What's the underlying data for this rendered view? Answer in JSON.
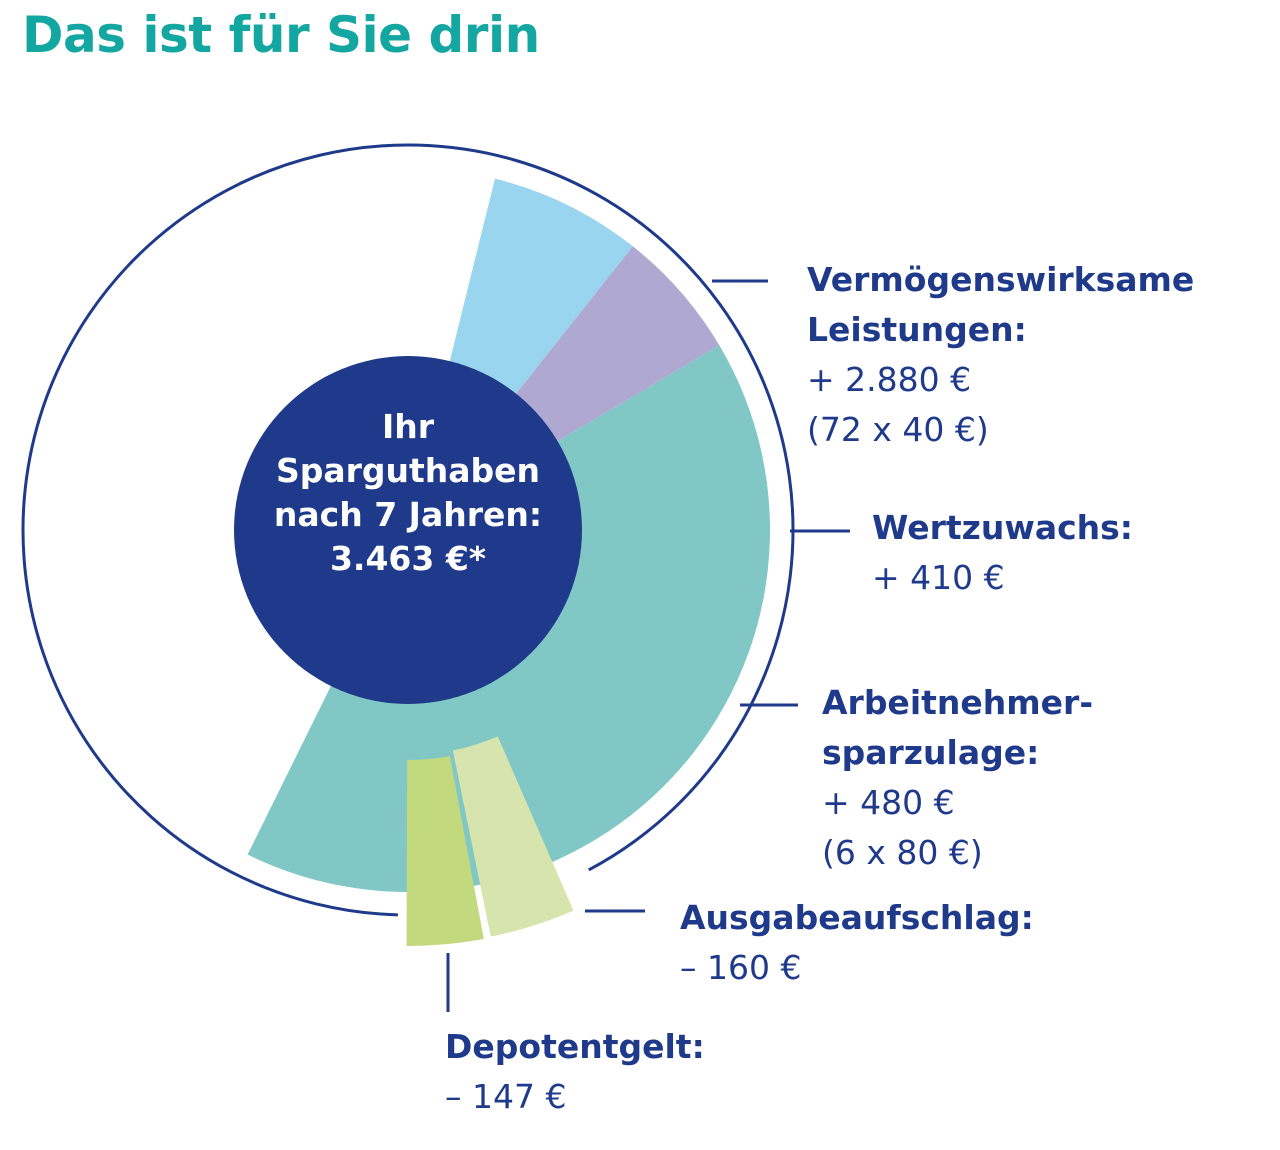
{
  "title": "Das ist für Sie drin",
  "center": {
    "lines": [
      "Ihr",
      "Sparguthaben",
      "nach 7 Jahren:",
      "3.463 €*"
    ],
    "color": "#1f3a8a"
  },
  "colors": {
    "text": "#1f3a8a",
    "title": "#14a6a0",
    "ring": "#1f3a8a"
  },
  "chart_data": {
    "type": "pie",
    "total": 3463,
    "categories": [
      "Vermögenswirksame Leistungen",
      "Wertzuwachs",
      "Arbeitnehmersparzulage",
      "Ausgabeaufschlag",
      "Depotentgelt"
    ],
    "values": [
      2880,
      410,
      480,
      -160,
      -147
    ],
    "slices": [
      {
        "name": "Vermögenswirksame Leistungen:",
        "value": 2880,
        "value_label": "+ 2.880 €",
        "detail": "(72 x 40 €)",
        "color": "#80c7c6"
      },
      {
        "name": "Wertzuwachs:",
        "value": 410,
        "value_label": "+ 410 €",
        "detail": "",
        "color": "#afa9d2"
      },
      {
        "name": "Arbeitnehmer-sparzulage:",
        "value": 480,
        "value_label": "+ 480 €",
        "detail": "(6 x 80 €)",
        "color": "#99d5ee"
      },
      {
        "name": "Ausgabeaufschlag:",
        "value": -160,
        "value_label": "– 160 €",
        "detail": "",
        "color": "#d8e4ad"
      },
      {
        "name": "Depotentgelt:",
        "value": -147,
        "value_label": "– 147 €",
        "detail": "",
        "color": "#c2d97e"
      }
    ]
  }
}
